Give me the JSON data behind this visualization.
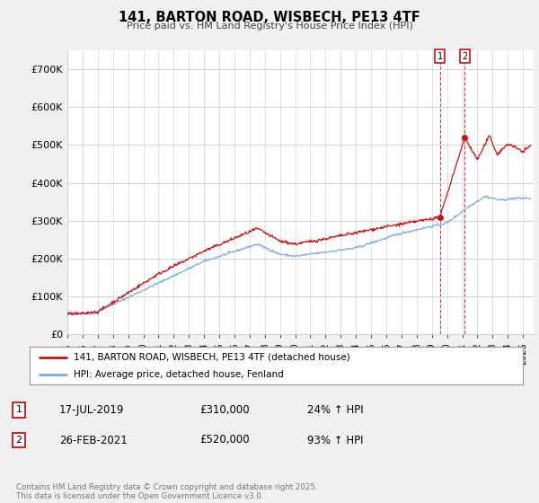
{
  "title": "141, BARTON ROAD, WISBECH, PE13 4TF",
  "subtitle": "Price paid vs. HM Land Registry's House Price Index (HPI)",
  "ylim": [
    0,
    750000
  ],
  "yticks": [
    0,
    100000,
    200000,
    300000,
    400000,
    500000,
    600000,
    700000
  ],
  "ytick_labels": [
    "£0",
    "£100K",
    "£200K",
    "£300K",
    "£400K",
    "£500K",
    "£600K",
    "£700K"
  ],
  "hpi_color": "#7aaadd",
  "price_color": "#cc1111",
  "purchase1": {
    "date_label": "17-JUL-2019",
    "price": 310000,
    "pct": "24%",
    "marker_year": 2019.54
  },
  "purchase2": {
    "date_label": "26-FEB-2021",
    "price": 520000,
    "pct": "93%",
    "marker_year": 2021.16
  },
  "background_color": "#f0f0f0",
  "plot_background": "#ffffff",
  "grid_color": "#cccccc",
  "legend_label_red": "141, BARTON ROAD, WISBECH, PE13 4TF (detached house)",
  "legend_label_blue": "HPI: Average price, detached house, Fenland",
  "footer": "Contains HM Land Registry data © Crown copyright and database right 2025.\nThis data is licensed under the Open Government Licence v3.0.",
  "table_row1": [
    "1",
    "17-JUL-2019",
    "£310,000",
    "24% ↑ HPI"
  ],
  "table_row2": [
    "2",
    "26-FEB-2021",
    "£520,000",
    "93% ↑ HPI"
  ],
  "xlim_start": 1995,
  "xlim_end": 2025.7
}
